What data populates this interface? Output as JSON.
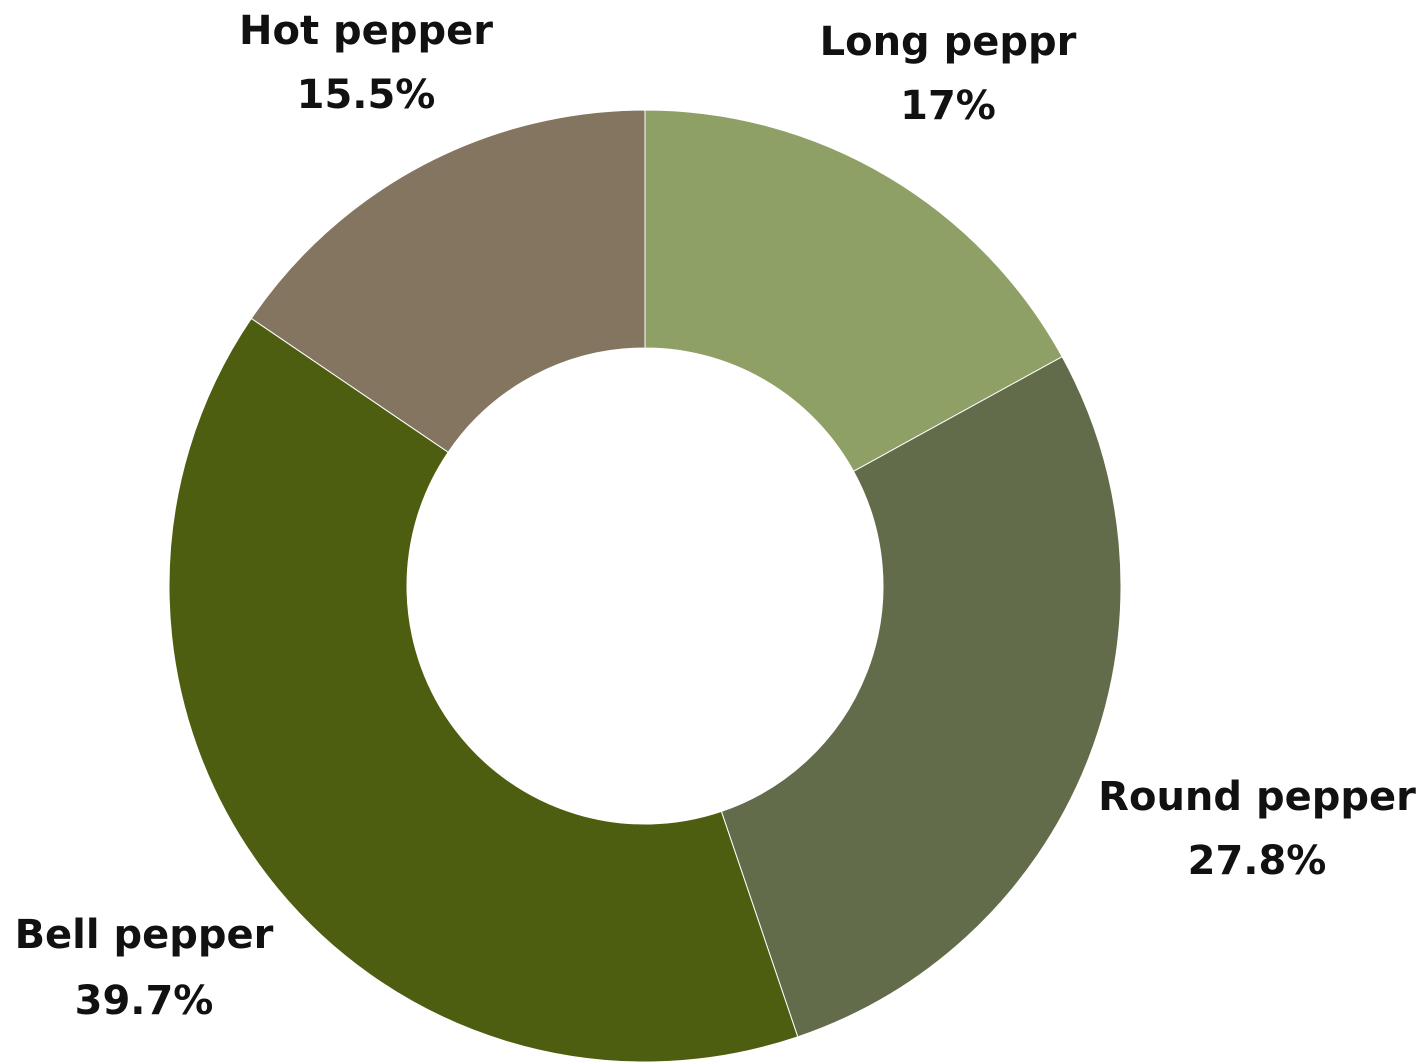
{
  "chart_data": {
    "type": "pie",
    "donut": true,
    "start_angle_deg": 0,
    "direction": "clockwise",
    "legend": "none",
    "slices": [
      {
        "name": "Long peppr",
        "label": "17%",
        "value": 17.0,
        "color": "#8fa066"
      },
      {
        "name": "Round pepper",
        "label": "27.8%",
        "value": 27.8,
        "color": "#626c4b"
      },
      {
        "name": "Bell pepper",
        "label": "39.7%",
        "value": 39.7,
        "color": "#4e5e10"
      },
      {
        "name": "Hot pepper",
        "label": "15.5%",
        "value": 15.5,
        "color": "#847560"
      }
    ]
  }
}
